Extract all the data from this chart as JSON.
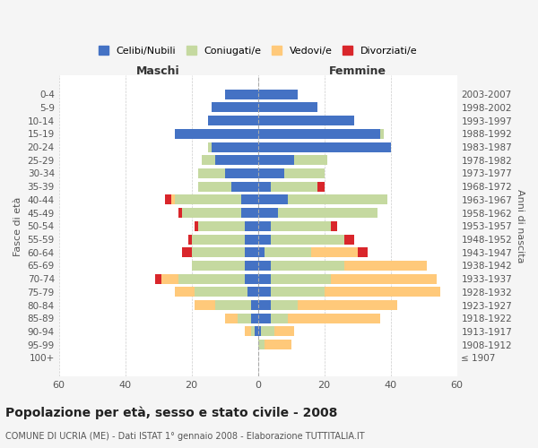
{
  "age_groups": [
    "100+",
    "95-99",
    "90-94",
    "85-89",
    "80-84",
    "75-79",
    "70-74",
    "65-69",
    "60-64",
    "55-59",
    "50-54",
    "45-49",
    "40-44",
    "35-39",
    "30-34",
    "25-29",
    "20-24",
    "15-19",
    "10-14",
    "5-9",
    "0-4"
  ],
  "birth_years": [
    "≤ 1907",
    "1908-1912",
    "1913-1917",
    "1918-1922",
    "1923-1927",
    "1928-1932",
    "1933-1937",
    "1938-1942",
    "1943-1947",
    "1948-1952",
    "1953-1957",
    "1958-1962",
    "1963-1967",
    "1968-1972",
    "1973-1977",
    "1978-1982",
    "1983-1987",
    "1988-1992",
    "1993-1997",
    "1998-2002",
    "2003-2007"
  ],
  "colors": {
    "celibi": "#4472c4",
    "coniugati": "#c5d9a0",
    "vedovi": "#ffc97a",
    "divorziati": "#d9262b"
  },
  "maschi": {
    "celibi": [
      0,
      0,
      1,
      2,
      2,
      3,
      4,
      4,
      4,
      4,
      4,
      5,
      5,
      8,
      10,
      13,
      14,
      25,
      15,
      14,
      10
    ],
    "coniugati": [
      0,
      0,
      1,
      4,
      11,
      16,
      20,
      16,
      16,
      16,
      14,
      18,
      20,
      10,
      8,
      4,
      1,
      0,
      0,
      0,
      0
    ],
    "vedovi": [
      0,
      0,
      2,
      4,
      6,
      6,
      5,
      0,
      0,
      0,
      0,
      0,
      1,
      0,
      0,
      0,
      0,
      0,
      0,
      0,
      0
    ],
    "divorziati": [
      0,
      0,
      0,
      0,
      0,
      0,
      2,
      0,
      3,
      1,
      1,
      1,
      2,
      0,
      0,
      0,
      0,
      0,
      0,
      0,
      0
    ]
  },
  "femmine": {
    "celibi": [
      0,
      0,
      1,
      4,
      4,
      4,
      4,
      4,
      2,
      4,
      4,
      6,
      9,
      4,
      8,
      11,
      40,
      37,
      29,
      18,
      12
    ],
    "coniugati": [
      0,
      2,
      4,
      5,
      8,
      16,
      18,
      22,
      14,
      22,
      18,
      30,
      30,
      14,
      12,
      10,
      0,
      1,
      0,
      0,
      0
    ],
    "vedovi": [
      0,
      8,
      6,
      28,
      30,
      35,
      32,
      25,
      14,
      0,
      0,
      0,
      0,
      0,
      0,
      0,
      0,
      0,
      0,
      0,
      0
    ],
    "divorziati": [
      0,
      0,
      0,
      0,
      0,
      0,
      0,
      0,
      3,
      3,
      2,
      0,
      0,
      2,
      0,
      0,
      0,
      0,
      0,
      0,
      0
    ]
  },
  "xlim": 60,
  "title": "Popolazione per età, sesso e stato civile - 2008",
  "subtitle": "COMUNE DI UCRIA (ME) - Dati ISTAT 1° gennaio 2008 - Elaborazione TUTTITALIA.IT",
  "ylabel_left": "Fasce di età",
  "ylabel_right": "Anni di nascita",
  "xlabel_maschi": "Maschi",
  "xlabel_femmine": "Femmine",
  "legend_labels": [
    "Celibi/Nubili",
    "Coniugati/e",
    "Vedovi/e",
    "Divorziati/e"
  ],
  "bg_color": "#f5f5f5",
  "plot_bg": "#ffffff"
}
